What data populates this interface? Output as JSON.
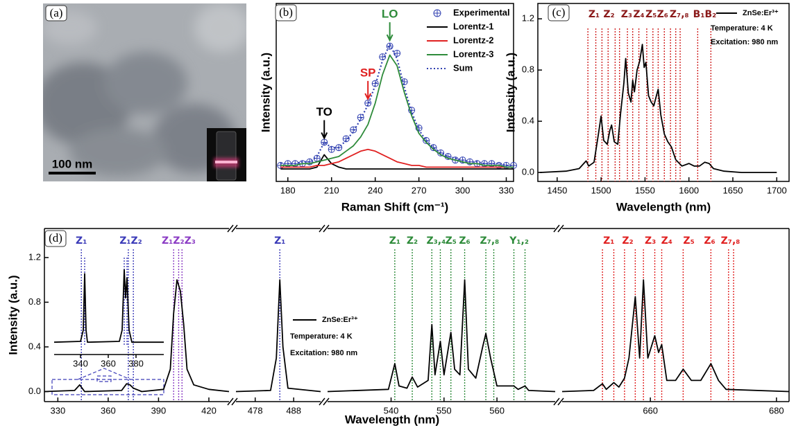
{
  "image_panel": {
    "label": "(a)",
    "scale_bar": "100 nm"
  },
  "chart_data": [
    {
      "type": "line",
      "label": "(b)",
      "xlabel": "Raman Shift (cm⁻¹)",
      "ylabel": "Intensity (a.u.)",
      "x": [
        175,
        180,
        185,
        190,
        195,
        200,
        205,
        210,
        215,
        220,
        225,
        230,
        235,
        240,
        245,
        250,
        255,
        260,
        265,
        270,
        275,
        280,
        285,
        290,
        295,
        300,
        305,
        310,
        315,
        320,
        325,
        330,
        335
      ],
      "xlim": [
        172,
        335
      ],
      "xticks": [
        180,
        210,
        240,
        270,
        300,
        330
      ],
      "ylim": [
        0,
        1
      ],
      "series": [
        {
          "name": "Experimental",
          "color": "#2f3fb0",
          "style": "markers",
          "values": [
            0.09,
            0.1,
            0.1,
            0.1,
            0.11,
            0.13,
            0.22,
            0.18,
            0.19,
            0.24,
            0.29,
            0.36,
            0.44,
            0.55,
            0.7,
            0.76,
            0.72,
            0.56,
            0.4,
            0.3,
            0.23,
            0.19,
            0.16,
            0.14,
            0.12,
            0.12,
            0.11,
            0.1,
            0.1,
            0.1,
            0.09,
            0.09,
            0.09
          ]
        },
        {
          "name": "Lorentz-1",
          "color": "#000000",
          "style": "solid",
          "values": [
            0.07,
            0.07,
            0.07,
            0.07,
            0.07,
            0.08,
            0.15,
            0.1,
            0.08,
            0.07,
            0.07,
            0.07,
            0.07,
            0.07,
            0.07,
            0.07,
            0.07,
            0.07,
            0.07,
            0.07,
            0.07,
            0.07,
            0.07,
            0.07,
            0.07,
            0.07,
            0.07,
            0.07,
            0.07,
            0.07,
            0.07,
            0.07,
            0.07
          ]
        },
        {
          "name": "Lorentz-2",
          "color": "#e02020",
          "style": "solid",
          "values": [
            0.08,
            0.08,
            0.08,
            0.08,
            0.08,
            0.09,
            0.09,
            0.1,
            0.11,
            0.13,
            0.15,
            0.17,
            0.18,
            0.17,
            0.15,
            0.13,
            0.11,
            0.1,
            0.09,
            0.09,
            0.08,
            0.08,
            0.08,
            0.08,
            0.08,
            0.08,
            0.08,
            0.08,
            0.08,
            0.08,
            0.08,
            0.08,
            0.08
          ]
        },
        {
          "name": "Lorentz-3",
          "color": "#2e8b3a",
          "style": "solid",
          "values": [
            0.09,
            0.09,
            0.09,
            0.1,
            0.1,
            0.11,
            0.12,
            0.13,
            0.14,
            0.17,
            0.2,
            0.25,
            0.32,
            0.44,
            0.6,
            0.71,
            0.65,
            0.5,
            0.37,
            0.27,
            0.22,
            0.18,
            0.15,
            0.13,
            0.12,
            0.11,
            0.1,
            0.1,
            0.09,
            0.09,
            0.09,
            0.08,
            0.08
          ]
        },
        {
          "name": "Sum",
          "color": "#2f3fb0",
          "style": "dotted",
          "values": [
            0.1,
            0.1,
            0.1,
            0.11,
            0.11,
            0.14,
            0.22,
            0.19,
            0.19,
            0.23,
            0.28,
            0.35,
            0.43,
            0.54,
            0.68,
            0.77,
            0.69,
            0.53,
            0.39,
            0.29,
            0.23,
            0.19,
            0.16,
            0.14,
            0.13,
            0.12,
            0.11,
            0.11,
            0.1,
            0.1,
            0.1,
            0.09,
            0.09
          ]
        }
      ],
      "annotations": [
        {
          "text": "TO",
          "x": 205,
          "color": "#000000"
        },
        {
          "text": "SP",
          "x": 235,
          "color": "#e02020"
        },
        {
          "text": "LO",
          "x": 250,
          "color": "#2e8b3a"
        }
      ]
    },
    {
      "type": "line",
      "label": "(c)",
      "xlabel": "Wavelength (nm)",
      "ylabel": "Intensity (a.u.)",
      "xlim": [
        1428,
        1714
      ],
      "xticks": [
        1450,
        1500,
        1550,
        1600,
        1650,
        1700
      ],
      "ylim": [
        -0.07,
        1.32
      ],
      "yticks": [
        {
          "value": 0,
          "label": "0.0"
        },
        0.4,
        0.8,
        1.2
      ],
      "series": [
        {
          "name": "ZnSe:Er³⁺",
          "color": "#000000",
          "style": "solid",
          "x": [
            1430,
            1460,
            1475,
            1483,
            1486,
            1492,
            1497,
            1500,
            1503,
            1507,
            1510,
            1512,
            1515,
            1519,
            1522,
            1526,
            1528,
            1531,
            1534,
            1536,
            1538,
            1541,
            1544,
            1547,
            1549,
            1551,
            1554,
            1557,
            1560,
            1563,
            1565,
            1568,
            1572,
            1576,
            1580,
            1585,
            1592,
            1600,
            1606,
            1612,
            1618,
            1623,
            1628,
            1640,
            1660,
            1700
          ],
          "values": [
            0.0,
            0.01,
            0.03,
            0.09,
            0.05,
            0.08,
            0.3,
            0.44,
            0.25,
            0.22,
            0.33,
            0.37,
            0.24,
            0.22,
            0.45,
            0.7,
            0.89,
            0.62,
            0.55,
            0.72,
            0.63,
            0.8,
            0.87,
            1.0,
            0.82,
            0.86,
            0.6,
            0.55,
            0.52,
            0.6,
            0.65,
            0.45,
            0.3,
            0.24,
            0.2,
            0.1,
            0.05,
            0.07,
            0.05,
            0.05,
            0.08,
            0.07,
            0.03,
            0.01,
            0.0,
            0.0
          ]
        }
      ],
      "notes": [
        "Temperature: 4 K",
        "Excitation: 980 nm"
      ],
      "markers": [
        {
          "color": "#d02020",
          "x": [
            1485,
            1494,
            1501,
            1508,
            1516,
            1521,
            1530,
            1536,
            1543,
            1552,
            1559,
            1565,
            1572,
            1579,
            1585,
            1590,
            1610,
            1625
          ]
        }
      ],
      "annotation_color": "#8b1a1a",
      "annotations": [
        {
          "text": "Z₁",
          "x": 1492
        },
        {
          "text": "Z₂",
          "x": 1509
        },
        {
          "text": "Z₃",
          "x": 1529
        },
        {
          "text": "Z₄",
          "x": 1543
        },
        {
          "text": "Z₅",
          "x": 1557
        },
        {
          "text": "Z₆",
          "x": 1570
        },
        {
          "text": "Z₇,₈",
          "x": 1589
        },
        {
          "text": "B₁B₂",
          "x": 1618
        }
      ]
    },
    {
      "type": "broken-line",
      "label": "(d)",
      "xlabel": "Wavelength (nm)",
      "ylabel": "Intensity (a.u.)",
      "ylim": [
        -0.09,
        1.46
      ],
      "yticks": [
        {
          "value": 0,
          "label": "0.0"
        },
        0.4,
        0.8,
        1.2
      ],
      "color": "#000000",
      "legend": {
        "name": "ZnSe:Er³⁺",
        "notes": [
          "Temperature: 4 K",
          "Excitation: 980 nm"
        ]
      },
      "segments": [
        {
          "xlim": [
            322,
            432
          ],
          "xticks": [
            330,
            360,
            390,
            420
          ],
          "x": [
            322,
            340,
            343,
            346,
            368,
            371,
            373,
            375,
            380,
            393,
            397,
            399,
            401,
            403,
            405,
            407,
            411,
            420,
            432
          ],
          "values": [
            0.0,
            0.01,
            0.06,
            0.0,
            0.01,
            0.07,
            0.06,
            0.03,
            0.0,
            0.02,
            0.2,
            0.7,
            1.0,
            0.9,
            0.6,
            0.2,
            0.06,
            0.02,
            0.0
          ],
          "markers": [
            {
              "color": "#3b3bb8",
              "x": [
                344,
                372,
                375
              ]
            },
            {
              "color": "#8b3cc4",
              "x": [
                399,
                402,
                404
              ]
            }
          ],
          "annotations": [
            {
              "text": "Z₁",
              "x": 344,
              "color": "#3b3bb8"
            },
            {
              "text": "Z₁Z₂",
              "x": 373.5,
              "color": "#3b3bb8"
            },
            {
              "text": "Z₁Z₂Z₃",
              "x": 402,
              "color": "#8b3cc4"
            }
          ]
        },
        {
          "xlim": [
            473,
            495
          ],
          "xticks": [
            478,
            488
          ],
          "x": [
            473,
            482,
            483.5,
            484.4,
            485.2,
            486.5,
            495
          ],
          "values": [
            0.0,
            0.01,
            0.3,
            1.0,
            0.4,
            0.03,
            0.0
          ],
          "markers": [
            {
              "color": "#3b3bb8",
              "x": [
                484.4
              ]
            }
          ],
          "annotations": [
            {
              "text": "Z₁",
              "x": 484.4,
              "color": "#3b3bb8"
            }
          ]
        },
        {
          "xlim": [
            528,
            571
          ],
          "xticks": [
            540,
            550,
            560
          ],
          "x": [
            528,
            539.5,
            540.7,
            541.5,
            543,
            544,
            545,
            547,
            547.7,
            548.3,
            549.3,
            550,
            551.3,
            552,
            553,
            553.9,
            554.6,
            556,
            557.3,
            557.9,
            558.8,
            560,
            563.2,
            564,
            565.3,
            566,
            571
          ],
          "values": [
            0.0,
            0.02,
            0.25,
            0.05,
            0.03,
            0.13,
            0.04,
            0.1,
            0.6,
            0.15,
            0.45,
            0.15,
            0.53,
            0.2,
            0.15,
            1.0,
            0.2,
            0.12,
            0.4,
            0.52,
            0.3,
            0.05,
            0.05,
            0.02,
            0.05,
            0.01,
            0.0
          ],
          "markers": [
            {
              "color": "#2e8b3a",
              "x": [
                540.7,
                544,
                547.7,
                549.3,
                551.3,
                553.9,
                557.9,
                559.4,
                563.2,
                565.3
              ]
            }
          ],
          "annotations": [
            {
              "text": "Z₁",
              "x": 540.7,
              "color": "#2e8b3a"
            },
            {
              "text": "Z₂",
              "x": 544,
              "color": "#2e8b3a"
            },
            {
              "text": "Z₃,₄",
              "x": 548.5,
              "color": "#2e8b3a"
            },
            {
              "text": "Z₅",
              "x": 551.3,
              "color": "#2e8b3a"
            },
            {
              "text": "Z₆",
              "x": 553.9,
              "color": "#2e8b3a"
            },
            {
              "text": "Z₇,₈",
              "x": 558.6,
              "color": "#2e8b3a"
            },
            {
              "text": "Y₁,₂",
              "x": 564.2,
              "color": "#2e8b3a"
            }
          ]
        },
        {
          "xlim": [
            646,
            682
          ],
          "xticks": [
            660,
            680
          ],
          "x": [
            646,
            651,
            652.4,
            653,
            654.2,
            655,
            655.9,
            656.6,
            657.6,
            658.3,
            658.9,
            659.6,
            660.7,
            661.3,
            661.8,
            662.6,
            664,
            665.2,
            666.5,
            668,
            669.6,
            670.8,
            672,
            682
          ],
          "values": [
            0.0,
            0.01,
            0.07,
            0.02,
            0.08,
            0.04,
            0.12,
            0.3,
            0.85,
            0.3,
            1.0,
            0.3,
            0.5,
            0.35,
            0.42,
            0.1,
            0.1,
            0.2,
            0.1,
            0.1,
            0.25,
            0.1,
            0.02,
            0.0
          ],
          "markers": [
            {
              "color": "#e02020",
              "x": [
                652.4,
                654.2,
                655.9,
                657.6,
                658.9,
                660.7,
                661.8,
                665.2,
                669.6,
                672.4,
                673.2
              ]
            }
          ],
          "annotations": [
            {
              "text": "Z₁",
              "x": 653.4,
              "color": "#e02020"
            },
            {
              "text": "Z₂",
              "x": 656.4,
              "color": "#e02020"
            },
            {
              "text": "Z₃",
              "x": 660.0,
              "color": "#e02020"
            },
            {
              "text": "Z₄",
              "x": 662.6,
              "color": "#e02020"
            },
            {
              "text": "Z₅",
              "x": 666.1,
              "color": "#e02020"
            },
            {
              "text": "Z₆",
              "x": 669.4,
              "color": "#e02020"
            },
            {
              "text": "Z₇,₈",
              "x": 672.7,
              "color": "#e02020"
            }
          ]
        }
      ],
      "inset": {
        "xlim": [
          321,
          400
        ],
        "xticks": [
          340,
          360,
          380
        ],
        "ylim": [
          0,
          1.1
        ],
        "x": [
          321,
          340,
          342,
          343,
          344,
          345,
          368,
          370,
          371.5,
          372.5,
          373.5,
          375,
          377,
          400
        ],
        "values": [
          0.05,
          0.06,
          0.2,
          0.9,
          0.2,
          0.05,
          0.06,
          0.2,
          0.95,
          0.6,
          0.85,
          0.2,
          0.05,
          0.05
        ],
        "markers": [
          {
            "color": "#3b3bb8",
            "x": [
              343,
              371.5,
              373.5
            ]
          }
        ]
      }
    }
  ]
}
